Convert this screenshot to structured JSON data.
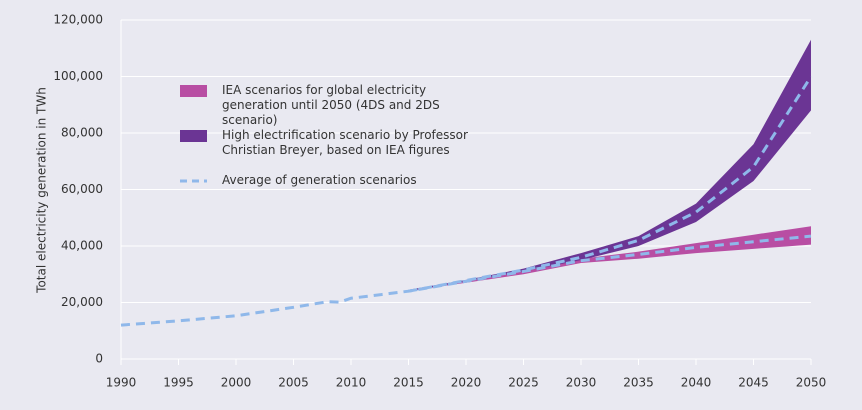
{
  "chart_data": {
    "type": "scenario",
    "y_label": "Total electricity generation in TWh",
    "x": [
      1990,
      1995,
      2000,
      2005,
      2008,
      2009,
      2010,
      2015,
      2020,
      2025,
      2030,
      2035,
      2040,
      2045,
      2050
    ],
    "xlim": [
      1990,
      2050
    ],
    "xticks": [
      1990,
      1995,
      2000,
      2005,
      2010,
      2015,
      2020,
      2025,
      2030,
      2035,
      2040,
      2045,
      2050
    ],
    "ylim": [
      0,
      120000
    ],
    "yticks": [
      0,
      {
        "value": 20000,
        "label": "20,000"
      },
      {
        "value": 40000,
        "label": "40,000"
      },
      {
        "value": 60000,
        "label": "60,000"
      },
      {
        "value": 80000,
        "label": "80,000"
      },
      {
        "value": 100000,
        "label": "100,000"
      },
      {
        "value": 120000,
        "label": "120,000"
      }
    ],
    "grid": true,
    "series": [
      {
        "name": "IEA scenarios for global electricity generation until 2050 (4DS and 2DS scenario)",
        "color": "#b84ea3",
        "kind": "band",
        "lower": [
          null,
          null,
          null,
          null,
          null,
          null,
          null,
          24000,
          27000,
          30000,
          34000,
          35500,
          37500,
          39000,
          40500
        ],
        "upper": [
          null,
          null,
          null,
          null,
          null,
          null,
          null,
          24000,
          27500,
          31500,
          35500,
          38000,
          41000,
          44000,
          47000
        ]
      },
      {
        "name": "High electrification scenario by Professor Christian Breyer, based on IEA figures",
        "color": "#6b3594",
        "kind": "band",
        "lower": [
          null,
          null,
          null,
          null,
          null,
          null,
          null,
          24000,
          27500,
          31000,
          35000,
          40000,
          48500,
          63000,
          88000
        ],
        "upper": [
          null,
          null,
          null,
          null,
          null,
          null,
          null,
          24500,
          28000,
          32000,
          37500,
          43500,
          55000,
          76000,
          113000
        ]
      },
      {
        "name": "Average of generation scenarios",
        "color": "#8fb8ea",
        "kind": "dashed",
        "values": [
          12000,
          13500,
          15300,
          18300,
          20300,
          20100,
          21500,
          24000,
          27500,
          31000,
          34800,
          37000,
          39500,
          41500,
          43500
        ],
        "branch": [
          null,
          null,
          null,
          null,
          null,
          null,
          null,
          24000,
          27800,
          31500,
          36000,
          42000,
          52000,
          68000,
          100000
        ]
      }
    ]
  }
}
